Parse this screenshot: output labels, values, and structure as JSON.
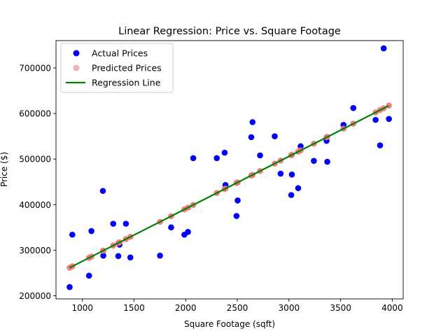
{
  "chart_data": {
    "type": "scatter",
    "title": "Linear Regression: Price vs. Square Footage",
    "xlabel": "Square Footage (sqft)",
    "ylabel": "Price ($)",
    "xlim": [
      744,
      4106
    ],
    "ylim": [
      193000,
      760000
    ],
    "xticks": [
      1000,
      1500,
      2000,
      2500,
      3000,
      3500,
      4000
    ],
    "yticks": [
      200000,
      300000,
      400000,
      500000,
      600000,
      700000
    ],
    "xtick_labels": [
      "1000",
      "1500",
      "2000",
      "2500",
      "3000",
      "3500",
      "4000"
    ],
    "ytick_labels": [
      "200000",
      "300000",
      "400000",
      "500000",
      "600000",
      "700000"
    ],
    "grid": false,
    "legend_position": "top-left",
    "colors": {
      "actual": "#0000ff",
      "predicted": "#f07070",
      "regression": "#008000"
    },
    "regression_line": {
      "x": [
        876,
        3966
      ],
      "y": [
        261500,
        617000
      ]
    },
    "series": [
      {
        "name": "Actual Prices",
        "kind": "scatter",
        "x": [
          876,
          902,
          1064,
          1087,
          1198,
          1202,
          1298,
          1347,
          1359,
          1421,
          1464,
          1751,
          1859,
          1987,
          2022,
          2073,
          2301,
          2377,
          2385,
          2492,
          2503,
          2635,
          2647,
          2720,
          2862,
          2919,
          3022,
          3028,
          3089,
          3113,
          3241,
          3364,
          3371,
          3528,
          3623,
          3839,
          3882,
          3917,
          3968
        ],
        "y": [
          219000,
          334000,
          244000,
          342000,
          430000,
          288000,
          358000,
          287000,
          312000,
          358000,
          284000,
          288000,
          350000,
          334000,
          340000,
          502000,
          502000,
          514000,
          443000,
          375000,
          409000,
          548000,
          581000,
          508000,
          550000,
          468000,
          421000,
          466000,
          436000,
          528000,
          496000,
          540000,
          494000,
          575000,
          612000,
          586000,
          530000,
          743000,
          588000
        ]
      },
      {
        "name": "Predicted Prices",
        "kind": "scatter",
        "x": [
          876,
          902,
          1064,
          1087,
          1198,
          1202,
          1298,
          1347,
          1359,
          1421,
          1464,
          1751,
          1859,
          1987,
          2022,
          2073,
          2301,
          2377,
          2385,
          2492,
          2503,
          2635,
          2647,
          2720,
          2862,
          2919,
          3022,
          3028,
          3089,
          3113,
          3241,
          3364,
          3371,
          3528,
          3623,
          3839,
          3882,
          3917,
          3968
        ],
        "y": [
          261500,
          264500,
          283200,
          285800,
          298600,
          299000,
          310100,
          315700,
          317100,
          324300,
          329200,
          362200,
          374700,
          389400,
          393400,
          399300,
          425500,
          434300,
          435200,
          447500,
          448800,
          464000,
          465300,
          473800,
          490100,
          496700,
          508500,
          509200,
          516200,
          519000,
          533700,
          547900,
          548700,
          566800,
          577700,
          602500,
          607500,
          611500,
          617400
        ]
      }
    ]
  },
  "legend": {
    "items": [
      {
        "label": "Actual Prices",
        "marker": "circle",
        "color": "#0000ff"
      },
      {
        "label": "Predicted Prices",
        "marker": "circle",
        "color": "#f07070"
      },
      {
        "label": "Regression Line",
        "marker": "line",
        "color": "#008000"
      }
    ]
  }
}
